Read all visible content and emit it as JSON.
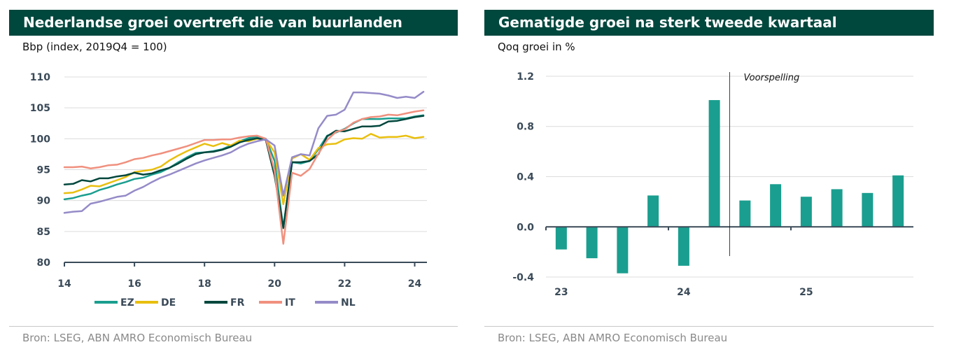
{
  "left_panel": {
    "title": "Nederlandse groei overtreft die van buurlanden",
    "subtitle": "Bbp (index, 2019Q4 = 100)",
    "source": "Bron: LSEG, ABN AMRO Economisch Bureau"
  },
  "right_panel": {
    "title": "Gematigde groei na sterk tweede kwartaal",
    "subtitle": "Qoq groei in %",
    "source": "Bron: LSEG, ABN AMRO Economisch Bureau"
  },
  "chart_data": [
    {
      "type": "line",
      "title": "Nederlandse groei overtreft die van buurlanden",
      "ylabel": "Bbp (index, 2019Q4 = 100)",
      "ylim": [
        80,
        110
      ],
      "yticks": [
        "80",
        "85",
        "90",
        "95",
        "100",
        "105",
        "110"
      ],
      "xlim": [
        2014.0,
        2024.35
      ],
      "xticks": [
        {
          "x": 2014,
          "label": "14"
        },
        {
          "x": 2016,
          "label": "16"
        },
        {
          "x": 2018,
          "label": "18"
        },
        {
          "x": 2020,
          "label": "20"
        },
        {
          "x": 2022,
          "label": "22"
        },
        {
          "x": 2024,
          "label": "24"
        }
      ],
      "grid": "horizontal",
      "legend": "bottom",
      "x": [
        2014.0,
        2014.25,
        2014.5,
        2014.75,
        2015.0,
        2015.25,
        2015.5,
        2015.75,
        2016.0,
        2016.25,
        2016.5,
        2016.75,
        2017.0,
        2017.25,
        2017.5,
        2017.75,
        2018.0,
        2018.25,
        2018.5,
        2018.75,
        2019.0,
        2019.25,
        2019.5,
        2019.75,
        2020.0,
        2020.25,
        2020.5,
        2020.75,
        2021.0,
        2021.25,
        2021.5,
        2021.75,
        2022.0,
        2022.25,
        2022.5,
        2022.75,
        2023.0,
        2023.25,
        2023.5,
        2023.75,
        2024.0,
        2024.25
      ],
      "series": [
        {
          "name": "EZ",
          "color": "#1a9e8f",
          "values": [
            90.2,
            90.4,
            90.8,
            91.1,
            91.7,
            92.1,
            92.6,
            93.0,
            93.5,
            93.7,
            94.2,
            94.6,
            95.3,
            96.2,
            97.0,
            97.7,
            97.8,
            98.0,
            98.3,
            98.9,
            99.6,
            100.1,
            100.4,
            100.0,
            96.4,
            85.5,
            96.2,
            96.0,
            96.4,
            98.3,
            100.5,
            101.0,
            101.6,
            102.5,
            103.2,
            103.2,
            103.2,
            103.3,
            103.3,
            103.3,
            103.6,
            103.8
          ]
        },
        {
          "name": "DE",
          "color": "#e9bf0e",
          "values": [
            91.2,
            91.3,
            91.8,
            92.4,
            92.3,
            92.8,
            93.3,
            93.8,
            94.6,
            94.8,
            95.0,
            95.5,
            96.5,
            97.3,
            98.0,
            98.6,
            99.2,
            98.8,
            99.3,
            98.9,
            99.7,
            99.6,
            100.0,
            99.9,
            97.8,
            89.4,
            96.8,
            97.5,
            96.6,
            98.5,
            99.1,
            99.2,
            99.9,
            100.1,
            100.0,
            100.8,
            100.2,
            100.3,
            100.3,
            100.5,
            100.1,
            100.3
          ]
        },
        {
          "name": "FR",
          "color": "#00473d",
          "values": [
            92.6,
            92.7,
            93.3,
            93.1,
            93.6,
            93.6,
            93.9,
            94.1,
            94.5,
            94.2,
            94.4,
            94.9,
            95.3,
            96.0,
            96.8,
            97.5,
            97.8,
            97.9,
            98.2,
            98.7,
            99.4,
            99.8,
            100.1,
            99.8,
            94.0,
            85.6,
            96.2,
            96.2,
            96.4,
            97.5,
            100.4,
            101.3,
            101.2,
            101.6,
            102.0,
            102.0,
            102.1,
            102.8,
            102.9,
            103.2,
            103.5,
            103.7
          ]
        },
        {
          "name": "IT",
          "color": "#f0907e",
          "values": [
            95.4,
            95.4,
            95.5,
            95.2,
            95.4,
            95.7,
            95.8,
            96.2,
            96.7,
            96.9,
            97.3,
            97.6,
            98.0,
            98.4,
            98.8,
            99.3,
            99.8,
            99.8,
            99.9,
            99.9,
            100.2,
            100.4,
            100.5,
            100.0,
            94.8,
            83.0,
            94.5,
            94.0,
            95.1,
            97.6,
            99.8,
            101.1,
            101.5,
            102.6,
            103.2,
            103.5,
            103.6,
            103.9,
            103.8,
            104.1,
            104.4,
            104.6
          ]
        },
        {
          "name": "NL",
          "color": "#958bc8",
          "values": [
            88.0,
            88.2,
            88.3,
            89.5,
            89.8,
            90.2,
            90.6,
            90.8,
            91.6,
            92.2,
            93.0,
            93.7,
            94.2,
            94.8,
            95.4,
            96.0,
            96.5,
            96.9,
            97.3,
            97.8,
            98.6,
            99.2,
            99.6,
            99.9,
            98.9,
            90.8,
            97.0,
            97.5,
            97.3,
            101.7,
            103.7,
            103.9,
            104.7,
            107.5,
            107.5,
            107.4,
            107.3,
            107.0,
            106.6,
            106.8,
            106.6,
            107.6
          ]
        }
      ]
    },
    {
      "type": "bar",
      "title": "Gematigde groei na sterk tweede kwartaal",
      "ylabel": "Qoq groei in %",
      "ylim": [
        -0.45,
        1.25
      ],
      "yticks": [
        "-0.4",
        "0.0",
        "0.4",
        "0.8",
        "1.2"
      ],
      "x_year_labels": [
        "23",
        "24",
        "25"
      ],
      "grid": "horizontal",
      "color": "#1a9e8f",
      "categories": [
        "23Q1",
        "23Q2",
        "23Q3",
        "23Q4",
        "24Q1",
        "24Q2",
        "24Q3",
        "24Q4",
        "25Q1",
        "25Q2",
        "25Q3",
        "25Q4"
      ],
      "values": [
        -0.18,
        -0.25,
        -0.37,
        0.25,
        -0.31,
        1.01,
        0.21,
        0.34,
        0.24,
        0.3,
        0.27,
        0.41
      ],
      "annotation": "Voorspelling"
    }
  ]
}
